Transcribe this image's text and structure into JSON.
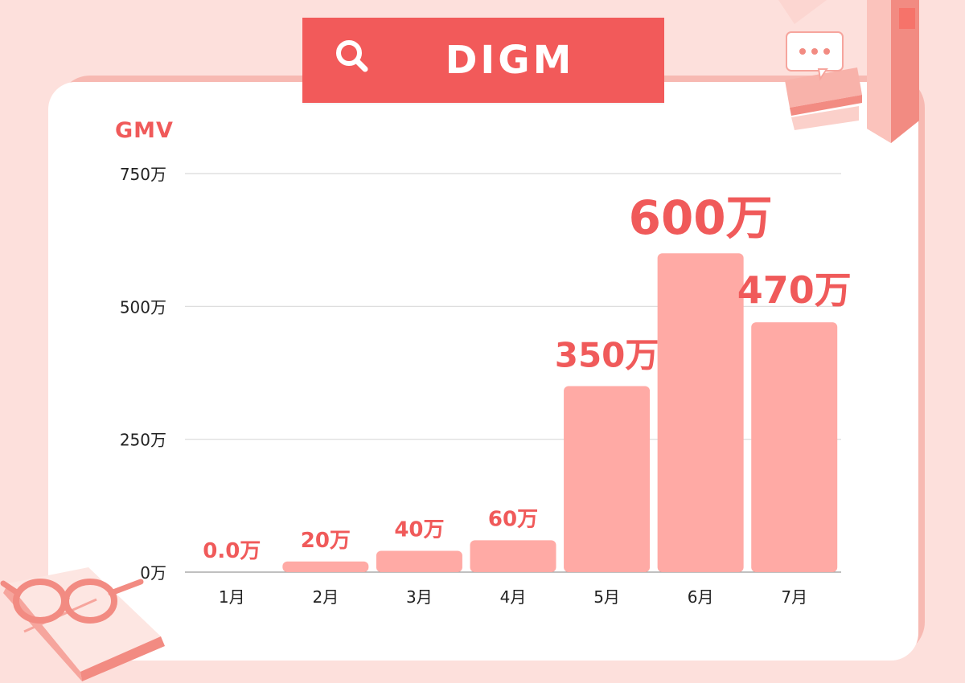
{
  "title": "DIGM",
  "colors": {
    "background": "#fde0dc",
    "banner": "#f25a5a",
    "bar": "#ffaaa5",
    "label": "#f05a5a",
    "grid": "#d9d9d9",
    "axis_text": "#222222"
  },
  "icons": {
    "banner_icon": "search-icon",
    "top_right_decoration": "books-chat-icon",
    "bottom_left_decoration": "glasses-book-icon"
  },
  "chart_data": {
    "type": "bar",
    "title": "DIGM",
    "ylabel": "GMV",
    "xlabel": "",
    "categories": [
      "1月",
      "2月",
      "3月",
      "4月",
      "5月",
      "6月",
      "7月"
    ],
    "values": [
      0,
      20,
      40,
      60,
      350,
      600,
      470
    ],
    "value_labels": [
      "0.0万",
      "20万",
      "40万",
      "60万",
      "350万",
      "600万",
      "470万"
    ],
    "ylim": [
      0,
      750
    ],
    "yticks": [
      0,
      250,
      500,
      750
    ],
    "ytick_labels": [
      "0万",
      "250万",
      "500万",
      "750万"
    ],
    "grid": true,
    "legend": "none"
  }
}
